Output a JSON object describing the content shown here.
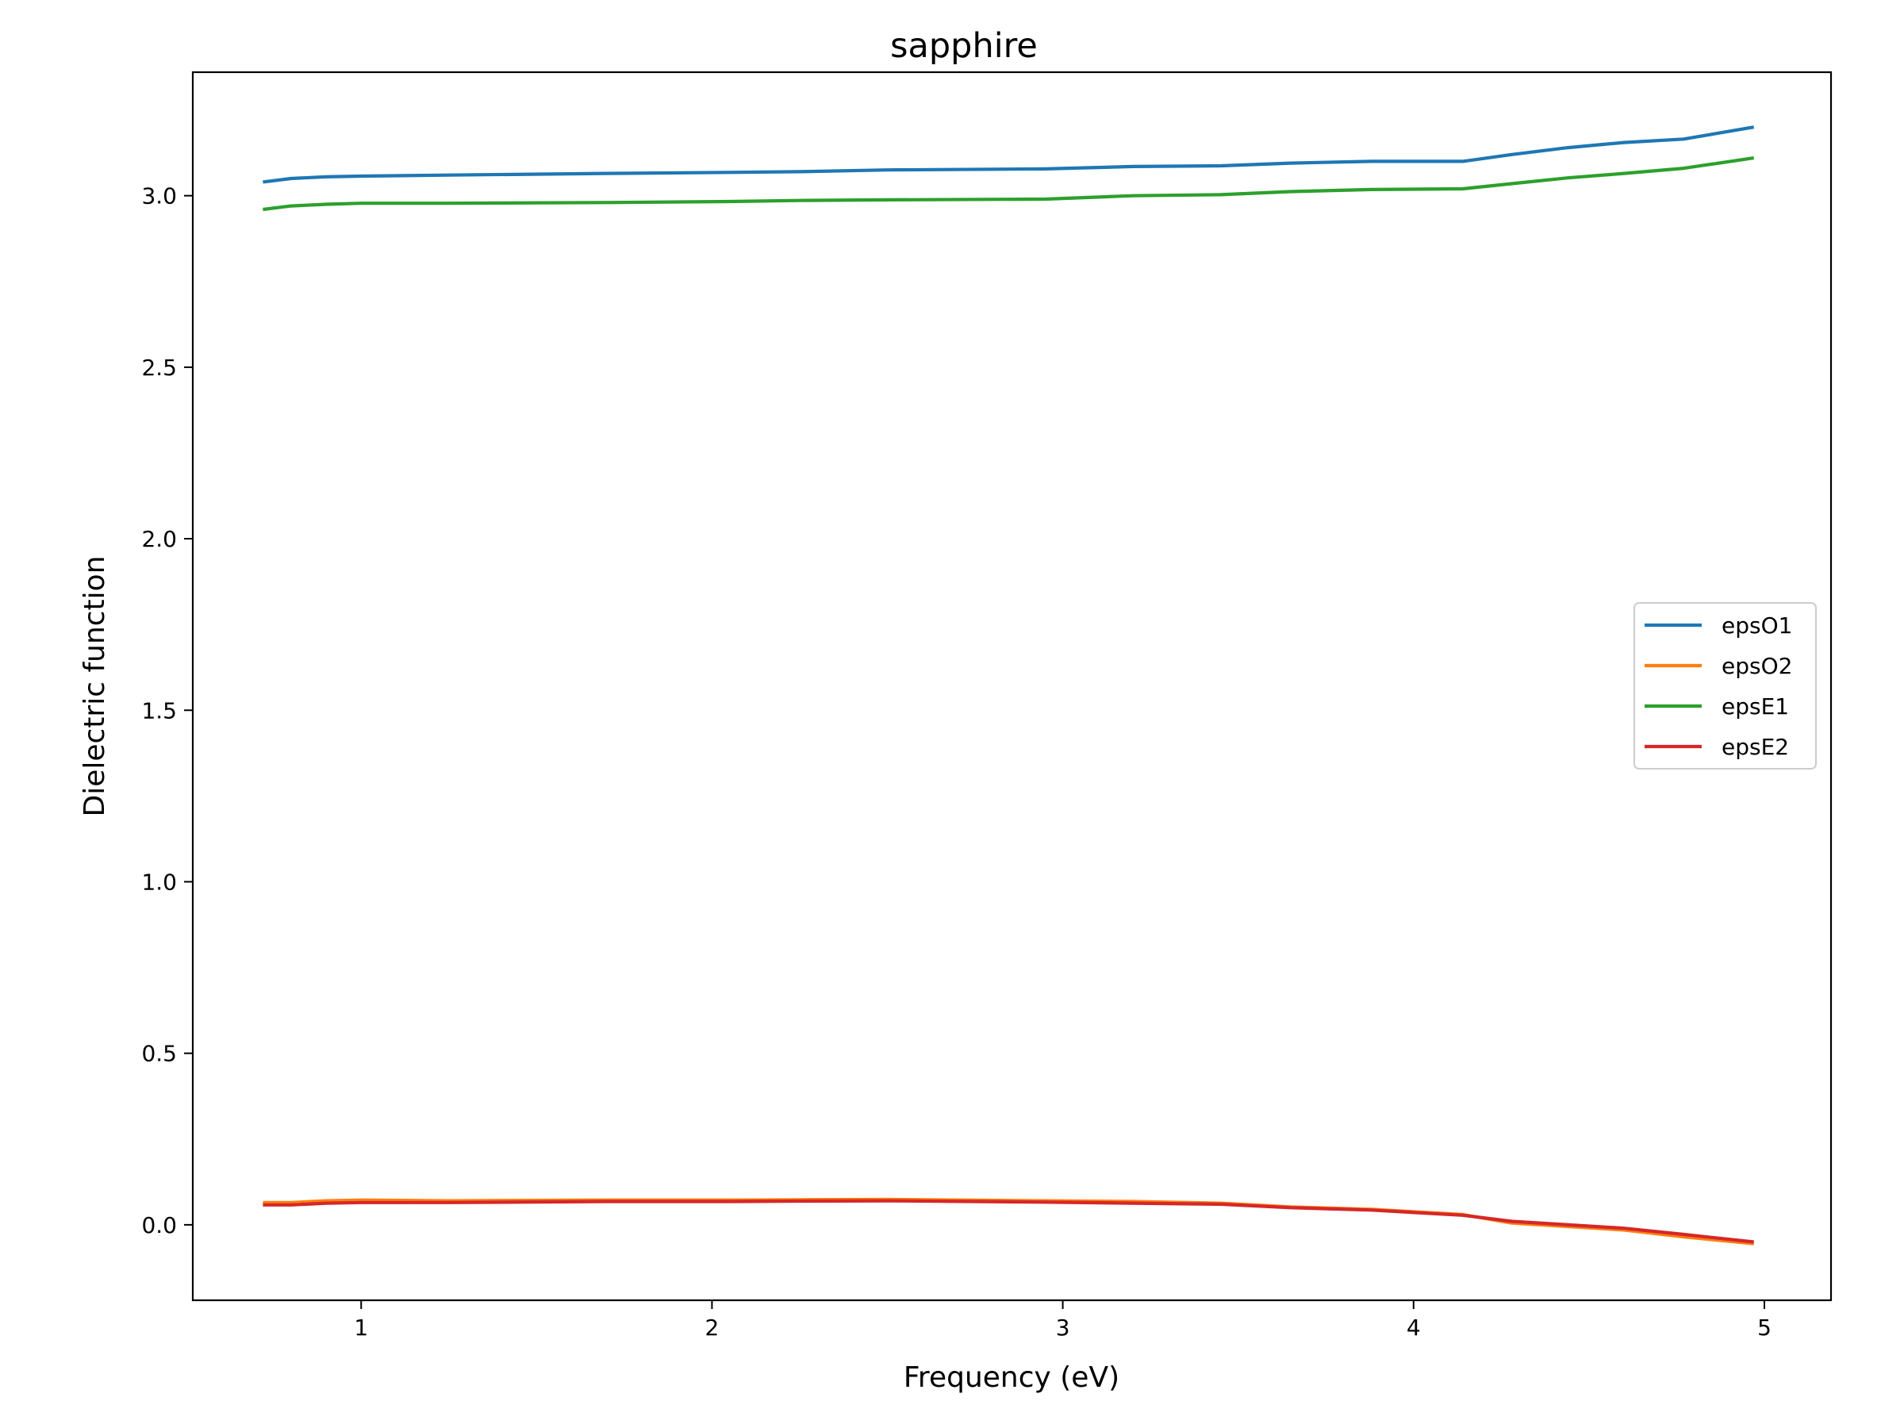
{
  "chart_data": {
    "type": "line",
    "title": "sapphire",
    "xlabel": "Frequency (eV)",
    "ylabel": "Dielectric function",
    "xlim": [
      0.52,
      5.19
    ],
    "ylim": [
      -0.22,
      3.36
    ],
    "xticks": [
      1,
      2,
      3,
      4,
      5
    ],
    "xtick_labels": [
      "1",
      "2",
      "3",
      "4",
      "5"
    ],
    "yticks": [
      0.0,
      0.5,
      1.0,
      1.5,
      2.0,
      2.5,
      3.0
    ],
    "ytick_labels": [
      "0.0",
      "0.5",
      "1.0",
      "1.5",
      "2.0",
      "2.5",
      "3.0"
    ],
    "grid": false,
    "legend_position": "center-right",
    "series": [
      {
        "name": "epsO1",
        "color": "#1f77b4",
        "x": [
          0.72,
          0.8,
          0.9,
          1.0,
          1.25,
          1.7,
          2.05,
          2.25,
          2.5,
          2.95,
          3.2,
          3.45,
          3.65,
          3.88,
          4.14,
          4.28,
          4.44,
          4.6,
          4.77,
          4.97
        ],
        "y": [
          3.04,
          3.05,
          3.055,
          3.057,
          3.06,
          3.065,
          3.068,
          3.07,
          3.075,
          3.078,
          3.085,
          3.087,
          3.095,
          3.1,
          3.1,
          3.12,
          3.14,
          3.155,
          3.165,
          3.2
        ]
      },
      {
        "name": "epsO2",
        "color": "#ff7f0e",
        "x": [
          0.72,
          0.8,
          0.9,
          1.0,
          1.25,
          1.7,
          2.05,
          2.25,
          2.5,
          2.95,
          3.2,
          3.45,
          3.65,
          3.88,
          4.14,
          4.28,
          4.44,
          4.6,
          4.77,
          4.97
        ],
        "y": [
          0.065,
          0.065,
          0.07,
          0.072,
          0.07,
          0.072,
          0.072,
          0.073,
          0.074,
          0.07,
          0.068,
          0.063,
          0.052,
          0.045,
          0.03,
          0.005,
          -0.005,
          -0.015,
          -0.035,
          -0.055
        ]
      },
      {
        "name": "epsE1",
        "color": "#2ca02c",
        "x": [
          0.72,
          0.8,
          0.9,
          1.0,
          1.25,
          1.7,
          2.05,
          2.25,
          2.5,
          2.95,
          3.2,
          3.45,
          3.65,
          3.88,
          4.14,
          4.28,
          4.44,
          4.6,
          4.77,
          4.97
        ],
        "y": [
          2.96,
          2.97,
          2.975,
          2.978,
          2.978,
          2.98,
          2.983,
          2.986,
          2.988,
          2.99,
          3.0,
          3.003,
          3.012,
          3.018,
          3.02,
          3.035,
          3.052,
          3.065,
          3.08,
          3.11
        ]
      },
      {
        "name": "epsE2",
        "color": "#d62728",
        "x": [
          0.72,
          0.8,
          0.9,
          1.0,
          1.25,
          1.7,
          2.05,
          2.25,
          2.5,
          2.95,
          3.2,
          3.45,
          3.65,
          3.88,
          4.14,
          4.28,
          4.44,
          4.6,
          4.77,
          4.97
        ],
        "y": [
          0.058,
          0.058,
          0.063,
          0.065,
          0.065,
          0.068,
          0.068,
          0.069,
          0.07,
          0.066,
          0.063,
          0.06,
          0.05,
          0.043,
          0.028,
          0.01,
          0.0,
          -0.01,
          -0.028,
          -0.05
        ]
      }
    ]
  }
}
